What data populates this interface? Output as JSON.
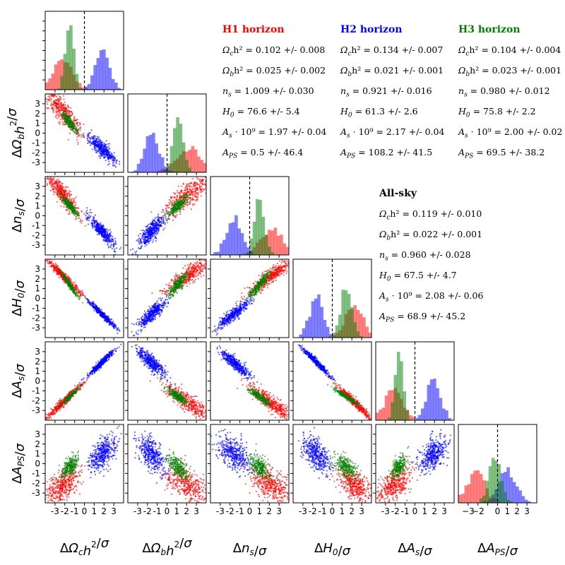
{
  "chart_data": {
    "type": "scatter",
    "title": "",
    "variables": [
      {
        "key": "omc",
        "xlabel": "ΔΩ_c h^2/σ",
        "ylabel": "ΔΩ_b h^2/σ"
      },
      {
        "key": "omb",
        "xlabel": "ΔΩ_b h^2/σ",
        "ylabel": "ΔΩ_b h^2/σ"
      },
      {
        "key": "ns",
        "xlabel": "Δn_s/σ",
        "ylabel": "Δn_s/σ"
      },
      {
        "key": "h0",
        "xlabel": "ΔH_0/σ",
        "ylabel": "ΔH_0/σ"
      },
      {
        "key": "as",
        "xlabel": "ΔA_s/σ",
        "ylabel": "ΔA_s/σ"
      },
      {
        "key": "aps",
        "xlabel": "ΔA_PS/σ",
        "ylabel": "ΔA_PS/σ"
      }
    ],
    "axis_labels": [
      "ΔΩ_c h^2/σ",
      "ΔΩ_b h^2/σ",
      "Δn_s/σ",
      "ΔH_0/σ",
      "ΔA_s/σ",
      "ΔA_PS/σ"
    ],
    "xlim": [
      -4,
      4
    ],
    "ylim": [
      -4,
      4
    ],
    "tick_values": [
      -3,
      -2,
      -1,
      0,
      1,
      2,
      3
    ],
    "tick_labels": [
      "-3",
      "-2",
      "-1",
      "0",
      "1",
      "2",
      "3"
    ],
    "last_tick_labels": [
      "−3",
      "−2",
      "0",
      "1",
      "2",
      "3"
    ],
    "reference_line": 0,
    "series": [
      {
        "name": "H1 horizon",
        "color": "#ff0000",
        "means": [
          -2.2,
          2.2,
          2.2,
          2.3,
          -2.2,
          -2.2
        ],
        "stds": [
          0.9,
          1.2,
          1.1,
          0.9,
          0.9,
          0.9
        ]
      },
      {
        "name": "H2 horizon",
        "color": "#0000ff",
        "means": [
          1.8,
          -1.6,
          -1.6,
          -1.6,
          1.9,
          1.0
        ],
        "stds": [
          0.7,
          0.7,
          0.8,
          0.7,
          0.7,
          0.9
        ]
      },
      {
        "name": "H3 horizon",
        "color": "#008000",
        "means": [
          -1.5,
          1.1,
          1.0,
          1.4,
          -1.6,
          -0.3
        ],
        "stds": [
          0.4,
          0.5,
          0.5,
          0.6,
          0.4,
          0.6
        ]
      }
    ],
    "correlations": {
      "omc-omb": -0.85,
      "omc-ns": -0.9,
      "omc-h0": -0.97,
      "omc-as": 0.97,
      "omc-aps": 0.55,
      "omb-ns": 0.8,
      "omb-h0": 0.85,
      "omb-as": -0.85,
      "omb-aps": -0.55,
      "ns-h0": 0.9,
      "ns-as": -0.9,
      "ns-aps": -0.5,
      "h0-as": -0.97,
      "h0-aps": -0.55,
      "as-aps": 0.55
    }
  },
  "annotations": {
    "blocks": [
      {
        "id": "h1",
        "title": "H1 horizon",
        "color": "#ff0000",
        "lines": [
          {
            "name": "Ω",
            "sub": "c",
            "rest": "h² = 0.102 +/- 0.008"
          },
          {
            "name": "Ω",
            "sub": "b",
            "rest": "h² = 0.025 +/- 0.002"
          },
          {
            "name": "n",
            "sub": "s",
            "rest": " = 1.009 +/- 0.030"
          },
          {
            "name": "H",
            "sub": "0",
            "rest": " = 76.6 +/- 5.4"
          },
          {
            "name": "A",
            "sub": "s",
            "rest": " · 10⁹ = 1.97 +/- 0.04"
          },
          {
            "name": "A",
            "sub": "PS",
            "rest": " = 0.5 +/- 46.4"
          }
        ]
      },
      {
        "id": "h2",
        "title": "H2 horizon",
        "color": "#0000ff",
        "lines": [
          {
            "name": "Ω",
            "sub": "c",
            "rest": "h² = 0.134 +/- 0.007"
          },
          {
            "name": "Ω",
            "sub": "b",
            "rest": "h² = 0.021 +/- 0.001"
          },
          {
            "name": "n",
            "sub": "s",
            "rest": " = 0.921 +/- 0.016"
          },
          {
            "name": "H",
            "sub": "0",
            "rest": " = 61.3 +/- 2.6"
          },
          {
            "name": "A",
            "sub": "s",
            "rest": " · 10⁹ = 2.17 +/- 0.04"
          },
          {
            "name": "A",
            "sub": "PS",
            "rest": " = 108.2 +/- 41.5"
          }
        ]
      },
      {
        "id": "h3",
        "title": "H3 horizon",
        "color": "#008000",
        "lines": [
          {
            "name": "Ω",
            "sub": "c",
            "rest": "h² = 0.104 +/- 0.004"
          },
          {
            "name": "Ω",
            "sub": "b",
            "rest": "h² = 0.023 +/- 0.001"
          },
          {
            "name": "n",
            "sub": "s",
            "rest": " = 0.980 +/- 0.012"
          },
          {
            "name": "H",
            "sub": "0",
            "rest": " = 75.8 +/- 2.2"
          },
          {
            "name": "A",
            "sub": "s",
            "rest": " · 10⁹ = 2.00 +/- 0.02"
          },
          {
            "name": "A",
            "sub": "PS",
            "rest": " = 69.5 +/- 38.2"
          }
        ]
      },
      {
        "id": "allsky",
        "title": "All-sky",
        "color": "#000000",
        "lines": [
          {
            "name": "Ω",
            "sub": "c",
            "rest": "h² = 0.119 +/- 0.010"
          },
          {
            "name": "Ω",
            "sub": "b",
            "rest": "h² = 0.022 +/- 0.001"
          },
          {
            "name": "n",
            "sub": "s",
            "rest": " = 0.960 +/- 0.028"
          },
          {
            "name": "H",
            "sub": "0",
            "rest": " = 67.5 +/- 4.7"
          },
          {
            "name": "A",
            "sub": "s",
            "rest": " · 10⁹ = 2.08 +/- 0.06"
          },
          {
            "name": "A",
            "sub": "PS",
            "rest": " = 68.9 +/- 45.2"
          }
        ]
      }
    ]
  }
}
